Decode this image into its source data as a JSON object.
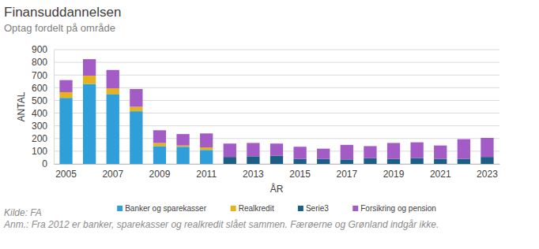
{
  "chart_data": {
    "type": "bar",
    "title": "Finansuddannelsen",
    "subtitle": "Optag fordelt på område",
    "x_label": "ÅR",
    "y_label": "ANTAL",
    "annotations": [
      "Kilde: FA",
      "Anm.: Fra 2012 er banker, sparekasser og realkredit slået sammen. Færøerne og Grønland indgår ikke."
    ],
    "stacked": true,
    "grid": true,
    "legend": "bottom",
    "categories": [
      "2005",
      null,
      "2007",
      null,
      "2009",
      null,
      "2011",
      null,
      "2013",
      null,
      "2015",
      null,
      "2017",
      null,
      "2019",
      null,
      "2021",
      null,
      "2023"
    ],
    "ylim": [
      0,
      900
    ],
    "yticks": [
      0,
      100,
      200,
      300,
      400,
      500,
      600,
      700,
      800,
      900
    ],
    "series": [
      {
        "name": "Banker og sparekasser",
        "color": "#2e9fd9",
        "values": [
          520,
          630,
          550,
          415,
          140,
          135,
          110,
          null,
          null,
          null,
          null,
          null,
          null,
          null,
          null,
          null,
          null,
          null,
          null
        ]
      },
      {
        "name": "Realkredit",
        "color": "#e6b31e",
        "values": [
          45,
          65,
          45,
          35,
          25,
          10,
          20,
          null,
          null,
          null,
          null,
          null,
          null,
          null,
          null,
          null,
          null,
          null,
          null
        ]
      },
      {
        "name": "Serie3",
        "color": "#1c5f84",
        "values": [
          null,
          null,
          null,
          null,
          null,
          null,
          null,
          55,
          60,
          65,
          40,
          40,
          35,
          45,
          40,
          45,
          40,
          40,
          55
        ]
      },
      {
        "name": "Forsikring og pension",
        "color": "#a35bc5",
        "values": [
          95,
          130,
          145,
          140,
          100,
          90,
          110,
          105,
          105,
          95,
          95,
          80,
          115,
          95,
          125,
          125,
          105,
          155,
          150
        ]
      }
    ]
  }
}
